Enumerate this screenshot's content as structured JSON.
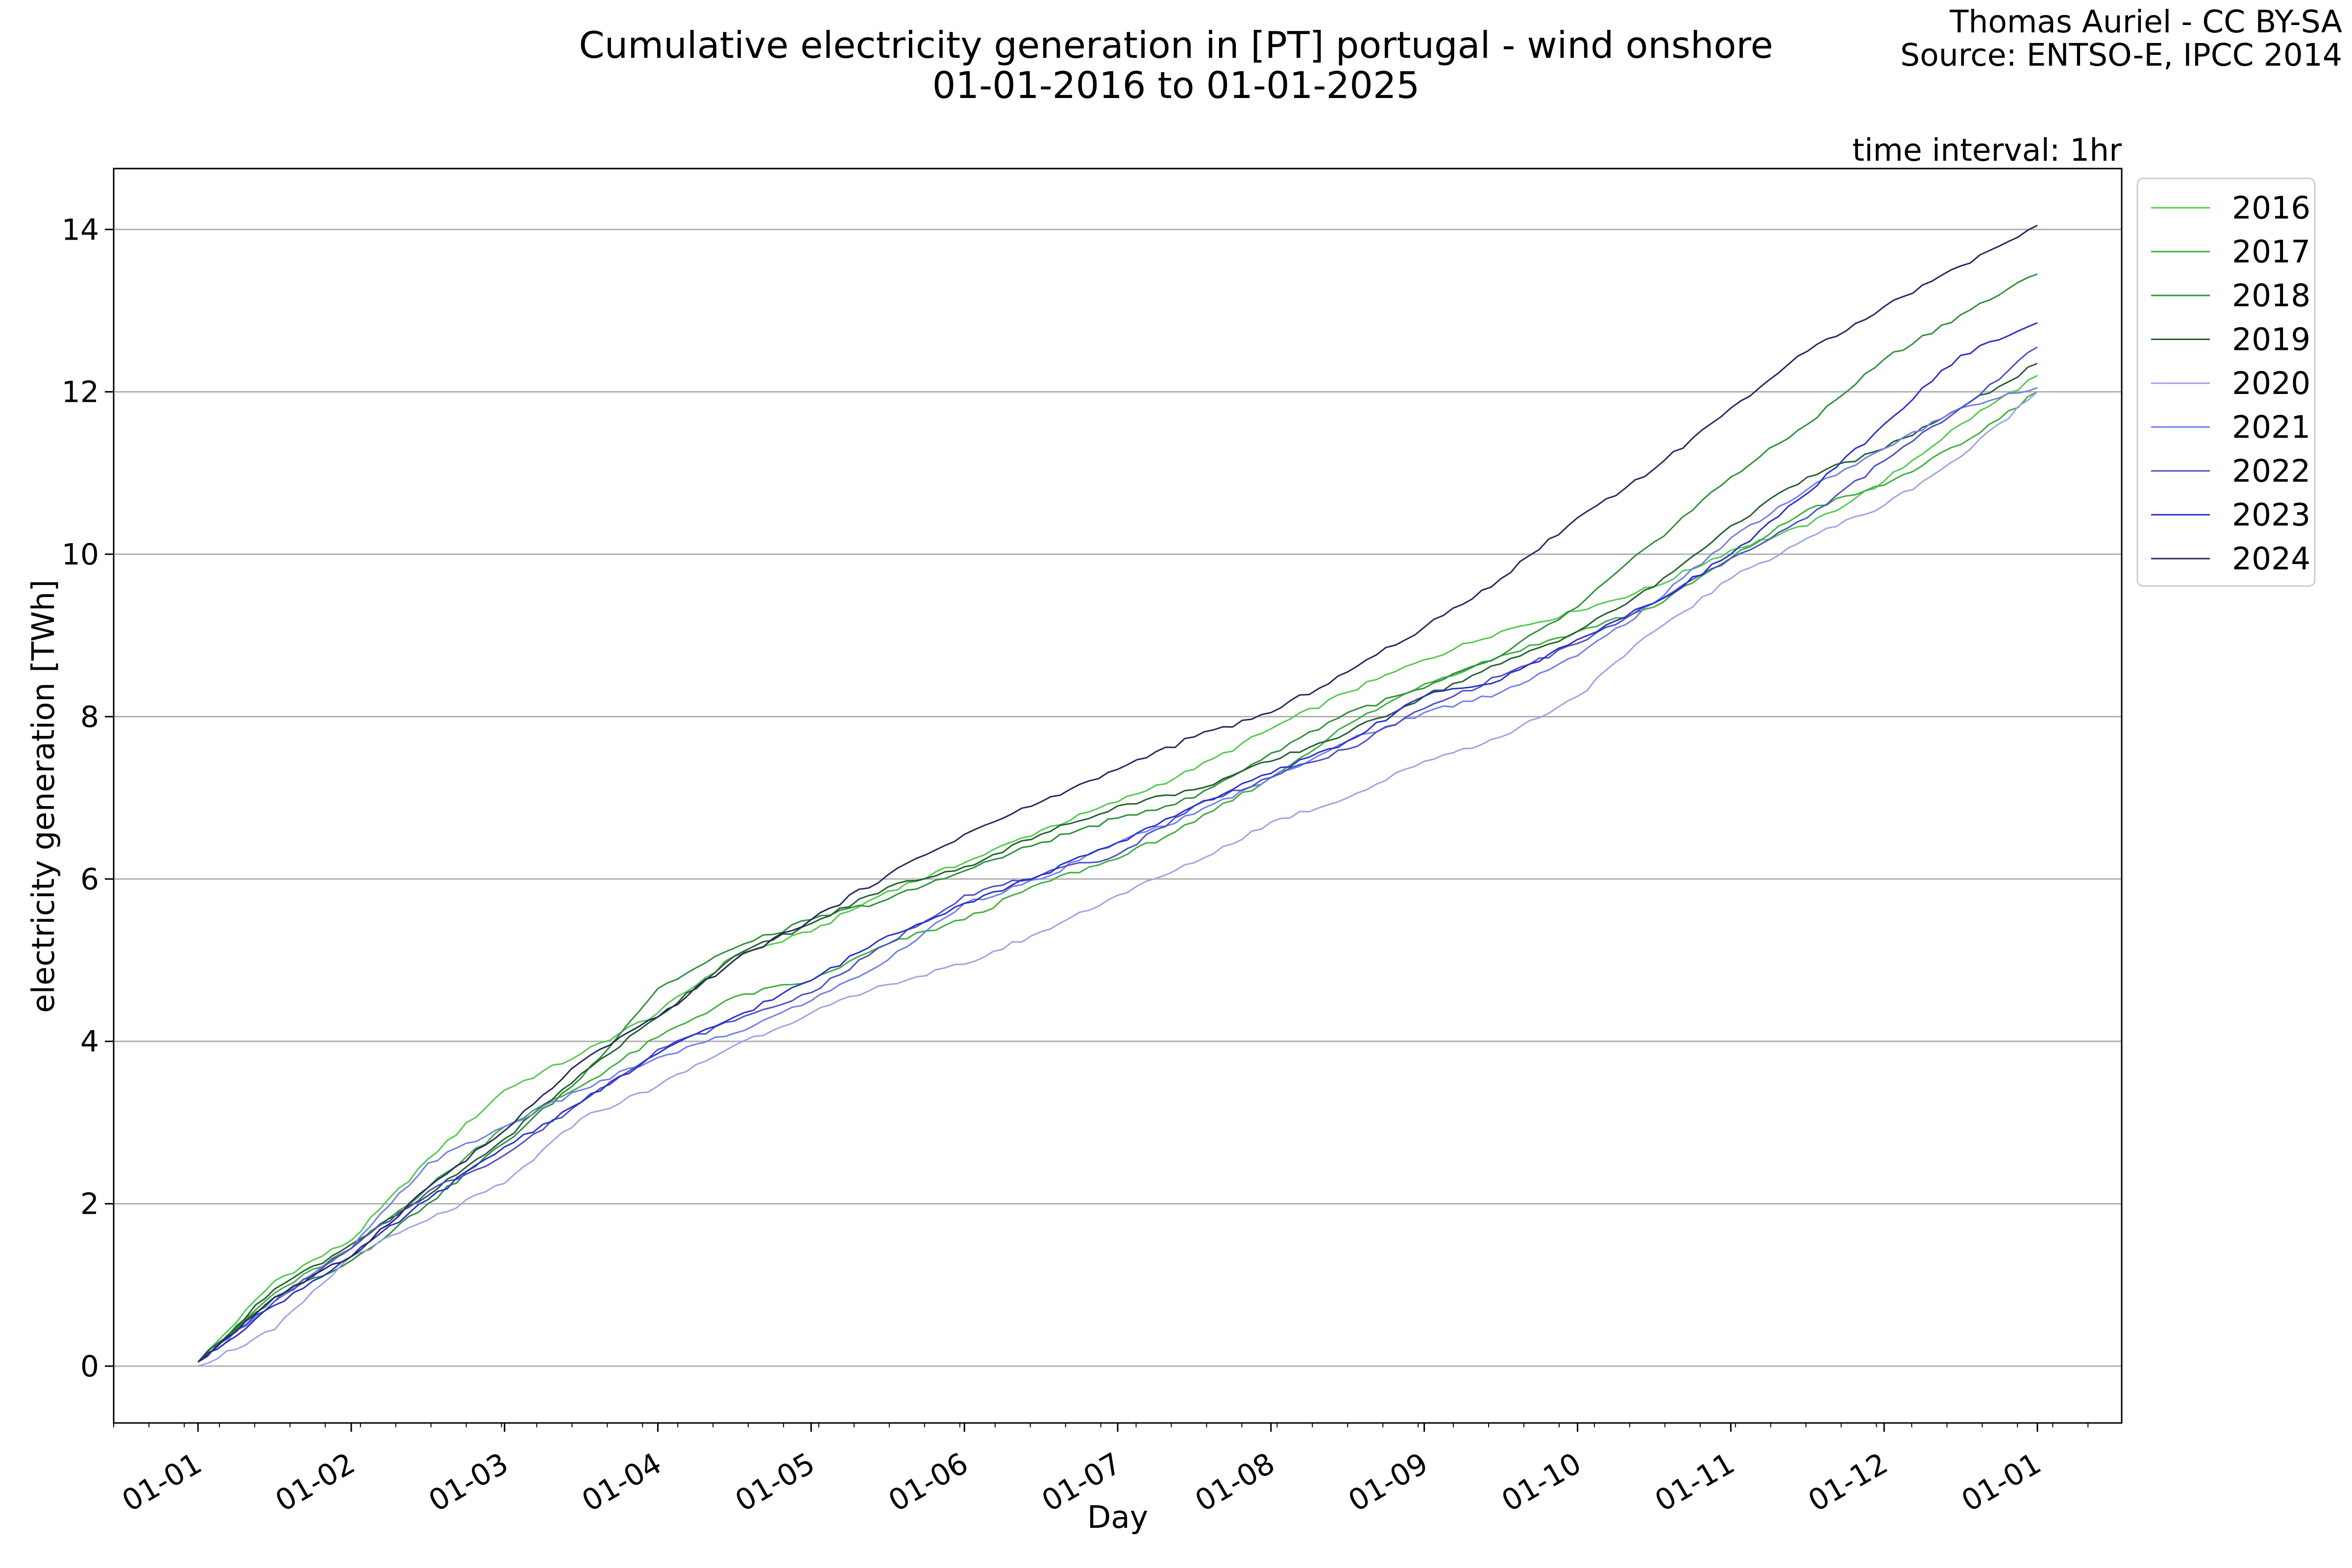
{
  "header": {
    "title_line1": "Cumulative electricity generation in [PT] portugal - wind onshore",
    "title_line2": "01-01-2016 to 01-01-2025",
    "credit_line1": "Thomas Auriel - CC BY-SA",
    "credit_line2": "Source: ENTSO-E, IPCC 2014",
    "interval": "time interval: 1hr"
  },
  "chart_data": {
    "type": "line",
    "xlabel": "Day",
    "ylabel": "electricity generation [TWh]",
    "x_unit": "month of year (1 = 01-01 start, 13 = next 01-01)",
    "xlim": [
      0.45,
      13.55
    ],
    "ylim": [
      -0.7,
      14.75
    ],
    "x_ticks": [
      1,
      2,
      3,
      4,
      5,
      6,
      7,
      8,
      9,
      10,
      11,
      12,
      13
    ],
    "x_tick_labels": [
      "01-01",
      "01-02",
      "01-03",
      "01-04",
      "01-05",
      "01-06",
      "01-07",
      "01-08",
      "01-09",
      "01-10",
      "01-11",
      "01-12",
      "01-01"
    ],
    "y_ticks": [
      0,
      2,
      4,
      6,
      8,
      10,
      12,
      14
    ],
    "y_tick_labels": [
      "0",
      "2",
      "4",
      "6",
      "8",
      "10",
      "12",
      "14"
    ],
    "grid": "horizontal",
    "legend_position": "outside top-right",
    "x": [
      1,
      1.5,
      2,
      2.5,
      3,
      3.5,
      4,
      4.5,
      5,
      5.5,
      6,
      6.5,
      7,
      7.5,
      8,
      8.5,
      9,
      9.5,
      10,
      10.5,
      11,
      11.5,
      12,
      12.5,
      13
    ],
    "series": [
      {
        "name": "2016",
        "color": "#52c94e",
        "values": [
          0.05,
          1.05,
          1.55,
          2.55,
          3.4,
          3.85,
          4.35,
          5.05,
          5.35,
          5.85,
          6.2,
          6.6,
          6.95,
          7.35,
          7.85,
          8.3,
          8.7,
          9.05,
          9.3,
          9.6,
          10.05,
          10.35,
          10.9,
          11.6,
          12.2
        ]
      },
      {
        "name": "2017",
        "color": "#3fae3f",
        "values": [
          0.05,
          0.9,
          1.45,
          2.2,
          2.95,
          3.45,
          4.05,
          4.55,
          4.75,
          5.2,
          5.5,
          5.95,
          6.25,
          6.7,
          7.25,
          7.9,
          8.4,
          8.75,
          9.05,
          9.35,
          9.95,
          10.55,
          10.85,
          11.35,
          12.0
        ]
      },
      {
        "name": "2018",
        "color": "#2e8f38",
        "values": [
          0.05,
          0.85,
          1.3,
          2.0,
          2.75,
          3.55,
          4.65,
          5.15,
          5.5,
          5.75,
          6.1,
          6.45,
          6.75,
          7.0,
          7.55,
          8.05,
          8.35,
          8.75,
          9.35,
          10.15,
          10.95,
          11.6,
          12.4,
          12.95,
          13.45
        ]
      },
      {
        "name": "2019",
        "color": "#245e2f",
        "values": [
          0.05,
          0.95,
          1.5,
          2.1,
          2.8,
          3.6,
          4.3,
          5.05,
          5.45,
          5.9,
          6.15,
          6.55,
          6.9,
          7.1,
          7.45,
          7.8,
          8.25,
          8.65,
          9.05,
          9.6,
          10.35,
          10.95,
          11.3,
          11.8,
          12.35
        ]
      },
      {
        "name": "2020",
        "color": "#9ea2e6",
        "values": [
          0.0,
          0.45,
          1.35,
          1.8,
          2.25,
          3.05,
          3.45,
          3.95,
          4.35,
          4.7,
          4.95,
          5.35,
          5.8,
          6.2,
          6.7,
          7.0,
          7.45,
          7.75,
          8.25,
          9.05,
          9.7,
          10.2,
          10.6,
          11.2,
          12.0
        ]
      },
      {
        "name": "2021",
        "color": "#6e7fe8",
        "values": [
          0.05,
          0.8,
          1.45,
          2.5,
          2.95,
          3.4,
          3.8,
          4.1,
          4.5,
          5.0,
          5.7,
          6.0,
          6.45,
          6.8,
          7.25,
          7.7,
          8.05,
          8.3,
          8.75,
          9.4,
          10.2,
          10.8,
          11.3,
          11.8,
          12.05
        ]
      },
      {
        "name": "2022",
        "color": "#4a4fc4",
        "values": [
          0.05,
          0.8,
          1.45,
          2.15,
          2.6,
          3.25,
          3.9,
          4.25,
          4.6,
          5.2,
          5.8,
          6.05,
          6.3,
          6.9,
          7.25,
          7.6,
          8.1,
          8.5,
          8.9,
          9.4,
          9.95,
          10.45,
          11.15,
          11.8,
          12.55
        ]
      },
      {
        "name": "2023",
        "color": "#2b30c9",
        "values": [
          0.05,
          0.75,
          1.35,
          2.05,
          2.7,
          3.25,
          3.85,
          4.3,
          4.75,
          5.3,
          5.7,
          6.05,
          6.45,
          6.9,
          7.3,
          7.7,
          8.25,
          8.45,
          8.95,
          9.4,
          10.0,
          10.75,
          11.6,
          12.45,
          12.85
        ]
      },
      {
        "name": "2024",
        "color": "#27275e",
        "values": [
          0.05,
          0.85,
          1.35,
          2.2,
          2.9,
          3.75,
          4.3,
          5.0,
          5.5,
          6.05,
          6.55,
          6.95,
          7.35,
          7.75,
          8.05,
          8.55,
          9.1,
          9.7,
          10.45,
          11.05,
          11.8,
          12.5,
          13.05,
          13.55,
          14.05
        ]
      }
    ]
  }
}
